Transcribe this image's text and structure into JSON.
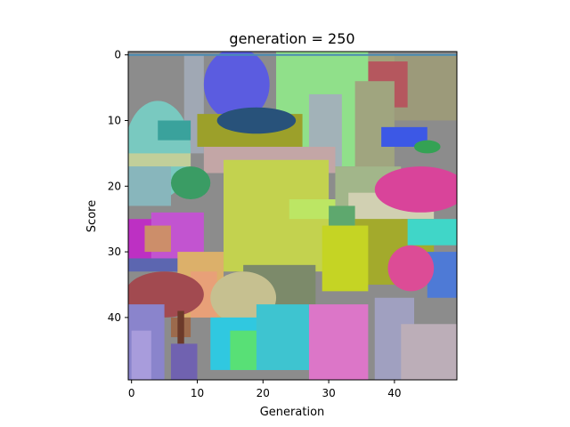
{
  "chart_data": {
    "type": "heatmap",
    "title": "generation = 250",
    "xlabel": "Generation",
    "ylabel": "Score",
    "xlim": [
      -0.5,
      49.5
    ],
    "ylim": [
      49.5,
      -0.5
    ],
    "xticks": [
      0,
      10,
      20,
      30,
      40
    ],
    "yticks": [
      0,
      10,
      20,
      30,
      40
    ],
    "grid": false,
    "background_color": "#8c8c8c",
    "top_line": {
      "y": 0,
      "x_range": [
        -0.5,
        49.5
      ],
      "color": "#4a8cb4"
    },
    "patches": [
      {
        "shape": "rect",
        "x": [
          0,
          50
        ],
        "y": [
          0,
          50
        ],
        "color": "#8c8c8c"
      },
      {
        "shape": "rect",
        "x": [
          34,
          50
        ],
        "y": [
          0,
          7
        ],
        "color": "#a3a27a"
      },
      {
        "shape": "rect",
        "x": [
          40,
          50
        ],
        "y": [
          0,
          10
        ],
        "color": "#9c9a7a"
      },
      {
        "shape": "rect",
        "x": [
          36,
          42
        ],
        "y": [
          1,
          8
        ],
        "color": "#b5575e"
      },
      {
        "shape": "rect",
        "x": [
          8,
          11
        ],
        "y": [
          0,
          15
        ],
        "color": "#a0a8b4"
      },
      {
        "shape": "ellipse",
        "x": [
          11,
          21
        ],
        "y": [
          -1,
          10
        ],
        "color": "#5b5ce0"
      },
      {
        "shape": "rect",
        "x": [
          22,
          36
        ],
        "y": [
          -0.5,
          17
        ],
        "color": "#90e08a"
      },
      {
        "shape": "rect",
        "x": [
          27,
          32
        ],
        "y": [
          6,
          17
        ],
        "color": "#a2b2b8"
      },
      {
        "shape": "rect",
        "x": [
          34,
          40
        ],
        "y": [
          4,
          19
        ],
        "color": "#a0a57f"
      },
      {
        "shape": "ellipse",
        "x": [
          -1,
          9
        ],
        "y": [
          7,
          22
        ],
        "color": "#79c9c0"
      },
      {
        "shape": "rect",
        "x": [
          4,
          9
        ],
        "y": [
          10,
          13
        ],
        "color": "#3aa29c"
      },
      {
        "shape": "rect",
        "x": [
          -0.5,
          9
        ],
        "y": [
          15,
          17
        ],
        "color": "#c1cf9a"
      },
      {
        "shape": "rect",
        "x": [
          -0.5,
          6
        ],
        "y": [
          17,
          23
        ],
        "color": "#88b6bc"
      },
      {
        "shape": "rect",
        "x": [
          10,
          26
        ],
        "y": [
          9,
          14
        ],
        "color": "#9ca02a"
      },
      {
        "shape": "ellipse",
        "x": [
          13,
          25
        ],
        "y": [
          8,
          12
        ],
        "color": "#28527a"
      },
      {
        "shape": "rect",
        "x": [
          11,
          31
        ],
        "y": [
          14,
          18
        ],
        "color": "#c3a6a6"
      },
      {
        "shape": "ellipse",
        "x": [
          6,
          12
        ],
        "y": [
          17,
          22
        ],
        "color": "#3a9c64"
      },
      {
        "shape": "rect",
        "x": [
          38,
          45
        ],
        "y": [
          11,
          14
        ],
        "color": "#3c58e6"
      },
      {
        "shape": "ellipse",
        "x": [
          43,
          47
        ],
        "y": [
          13,
          15
        ],
        "color": "#34a254"
      },
      {
        "shape": "rect",
        "x": [
          31,
          41
        ],
        "y": [
          17,
          27
        ],
        "color": "#a2b68a"
      },
      {
        "shape": "rect",
        "x": [
          33,
          46
        ],
        "y": [
          21,
          25
        ],
        "color": "#d1d0b2"
      },
      {
        "shape": "ellipse",
        "x": [
          37,
          51
        ],
        "y": [
          17,
          24
        ],
        "color": "#d9449a"
      },
      {
        "shape": "rect",
        "x": [
          14,
          30
        ],
        "y": [
          16,
          33
        ],
        "color": "#c3d24f"
      },
      {
        "shape": "rect",
        "x": [
          24,
          31
        ],
        "y": [
          22,
          25
        ],
        "color": "#bce664"
      },
      {
        "shape": "rect",
        "x": [
          30,
          34
        ],
        "y": [
          23,
          29
        ],
        "color": "#5ea86e"
      },
      {
        "shape": "rect",
        "x": [
          -0.5,
          5
        ],
        "y": [
          25,
          31
        ],
        "color": "#bd30c3"
      },
      {
        "shape": "rect",
        "x": [
          3,
          11
        ],
        "y": [
          24,
          31
        ],
        "color": "#c254d0"
      },
      {
        "shape": "rect",
        "x": [
          2,
          6
        ],
        "y": [
          26,
          30
        ],
        "color": "#cc8e6a"
      },
      {
        "shape": "rect",
        "x": [
          -0.5,
          10
        ],
        "y": [
          31,
          33
        ],
        "color": "#5c66b0"
      },
      {
        "shape": "rect",
        "x": [
          34,
          46
        ],
        "y": [
          25,
          35
        ],
        "color": "#a3aa2c"
      },
      {
        "shape": "rect",
        "x": [
          29,
          36
        ],
        "y": [
          26,
          36
        ],
        "color": "#c5d424"
      },
      {
        "shape": "rect",
        "x": [
          42,
          50
        ],
        "y": [
          25,
          29
        ],
        "color": "#40d6c8"
      },
      {
        "shape": "rect",
        "x": [
          45,
          50
        ],
        "y": [
          30,
          37
        ],
        "color": "#4e7ad6"
      },
      {
        "shape": "ellipse",
        "x": [
          39,
          46
        ],
        "y": [
          29,
          36
        ],
        "color": "#dc4c96"
      },
      {
        "shape": "rect",
        "x": [
          17,
          28
        ],
        "y": [
          32,
          39
        ],
        "color": "#7c8a6a"
      },
      {
        "shape": "rect",
        "x": [
          7,
          14
        ],
        "y": [
          30,
          40
        ],
        "color": "#dcb06a"
      },
      {
        "shape": "rect",
        "x": [
          9,
          13
        ],
        "y": [
          33,
          40
        ],
        "color": "#e8a078"
      },
      {
        "shape": "ellipse",
        "x": [
          -1,
          11
        ],
        "y": [
          33,
          40
        ],
        "color": "#a24a50"
      },
      {
        "shape": "rect",
        "x": [
          -0.5,
          5
        ],
        "y": [
          38,
          50
        ],
        "color": "#8a84cc"
      },
      {
        "shape": "rect",
        "x": [
          0,
          3
        ],
        "y": [
          42,
          50
        ],
        "color": "#a89cdc"
      },
      {
        "shape": "rect",
        "x": [
          6,
          9
        ],
        "y": [
          40,
          43
        ],
        "color": "#9c6a4c"
      },
      {
        "shape": "rect",
        "x": [
          7,
          8
        ],
        "y": [
          39,
          44
        ],
        "color": "#6c3a2a"
      },
      {
        "shape": "ellipse",
        "x": [
          12,
          22
        ],
        "y": [
          33,
          41
        ],
        "color": "#c6c090"
      },
      {
        "shape": "rect",
        "x": [
          12,
          28
        ],
        "y": [
          40,
          48
        ],
        "color": "#30c8e0"
      },
      {
        "shape": "rect",
        "x": [
          19,
          27
        ],
        "y": [
          38,
          48
        ],
        "color": "#3ec4d0"
      },
      {
        "shape": "rect",
        "x": [
          15,
          19
        ],
        "y": [
          42,
          48
        ],
        "color": "#58e076"
      },
      {
        "shape": "rect",
        "x": [
          37,
          43
        ],
        "y": [
          37,
          50
        ],
        "color": "#a0a0c0"
      },
      {
        "shape": "rect",
        "x": [
          41,
          50
        ],
        "y": [
          41,
          50
        ],
        "color": "#bcaeb8"
      },
      {
        "shape": "rect",
        "x": [
          27,
          36
        ],
        "y": [
          38,
          50
        ],
        "color": "#dc76c8"
      },
      {
        "shape": "rect",
        "x": [
          6,
          10
        ],
        "y": [
          44,
          50
        ],
        "color": "#7062b0"
      }
    ]
  }
}
